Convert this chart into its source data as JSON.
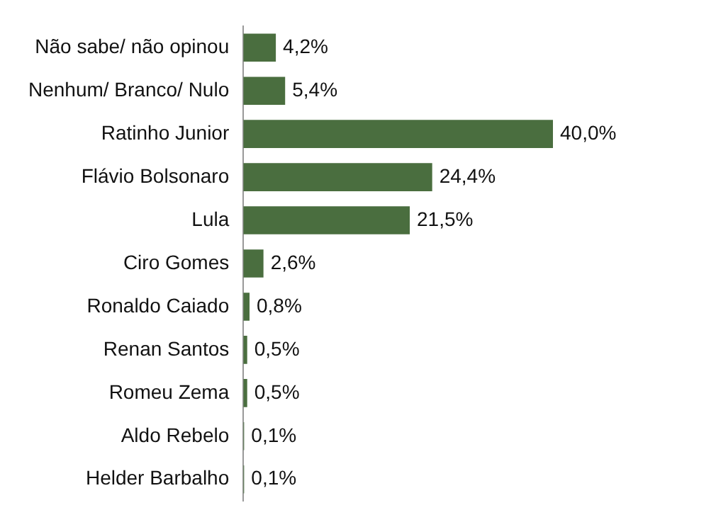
{
  "chart_data": {
    "type": "bar",
    "orientation": "horizontal",
    "categories": [
      "Não sabe/ não opinou",
      "Nenhum/ Branco/ Nulo",
      "Ratinho Junior",
      "Flávio Bolsonaro",
      "Lula",
      "Ciro Gomes",
      "Ronaldo Caiado",
      "Renan Santos",
      "Romeu Zema",
      "Aldo Rebelo",
      "Helder Barbalho"
    ],
    "values": [
      4.2,
      5.4,
      40.0,
      24.4,
      21.5,
      2.6,
      0.8,
      0.5,
      0.5,
      0.1,
      0.1
    ],
    "value_labels": [
      "4,2%",
      "5,4%",
      "40,0%",
      "24,4%",
      "21,5%",
      "2,6%",
      "0,8%",
      "0,5%",
      "0,5%",
      "0,1%",
      "0,1%"
    ],
    "color": "#4a6e3f",
    "tick_labels": "y"
  }
}
